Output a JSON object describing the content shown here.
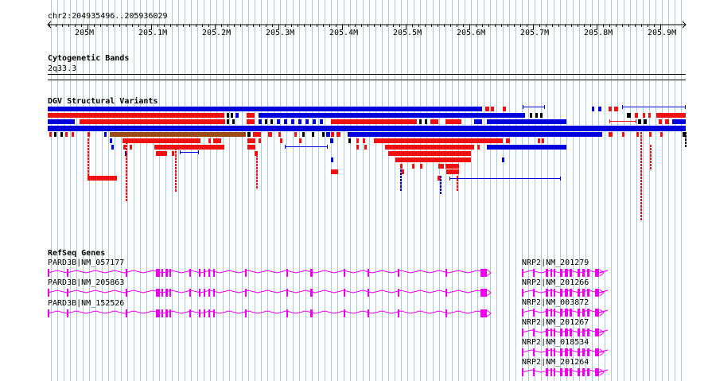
{
  "location": "chr2:204935496..205936029",
  "ruler": {
    "ticks": [
      "205M",
      "205.1M",
      "205.2M",
      "205.3M",
      "205.4M",
      "205.5M",
      "205.6M",
      "205.7M",
      "205.8M",
      "205.9M"
    ]
  },
  "tracks": {
    "cytoband": {
      "title": "Cytogenetic Bands",
      "band": "2q33.3"
    },
    "dgv": {
      "title": "DGV Structural Variants"
    },
    "refseq": {
      "title": "RefSeq Genes",
      "pard3b": [
        "PARD3B|NM_057177",
        "PARD3B|NM_205863",
        "PARD3B|NM_152526"
      ],
      "nrp2": [
        "NRP2|NM_201279",
        "NRP2|NM_201266",
        "NRP2|NM_003872",
        "NRP2|NM_201267",
        "NRP2|NM_018534",
        "NRP2|NM_201264"
      ]
    }
  },
  "colors": {
    "grid": "#a7cddb",
    "variant_blue": "#0000dd",
    "variant_red": "#ee1111",
    "variant_brown": "#9a4a14",
    "variant_black": "#000000",
    "gene": "#ee00ee"
  }
}
